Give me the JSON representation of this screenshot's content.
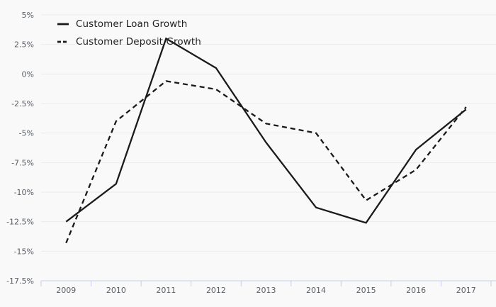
{
  "chart_data": {
    "type": "line",
    "title": "",
    "xlabel": "",
    "ylabel": "",
    "categories": [
      "2009",
      "2010",
      "2011",
      "2012",
      "2013",
      "2014",
      "2015",
      "2016",
      "2017"
    ],
    "series": [
      {
        "name": "Customer Loan Growth",
        "line_style": "solid",
        "color": "#1a1a1a",
        "values": [
          -12.5,
          -9.3,
          3.0,
          0.5,
          -5.8,
          -11.3,
          -12.6,
          -6.4,
          -3.0
        ]
      },
      {
        "name": "Customer Deposit Growth",
        "line_style": "dashed",
        "color": "#1a1a1a",
        "values": [
          -14.3,
          -4.0,
          -0.6,
          -1.3,
          -4.2,
          -5.0,
          -10.7,
          -8.1,
          -2.8
        ]
      }
    ],
    "ylim": [
      -17.5,
      5
    ],
    "y_tick_step": 2.5,
    "y_ticks": [
      5,
      2.5,
      0,
      -2.5,
      -5,
      -7.5,
      -10,
      -12.5,
      -15,
      -17.5
    ],
    "y_tick_labels": [
      "5%",
      "2.5%",
      "0%",
      "-2.5%",
      "-5%",
      "-7.5%",
      "-10%",
      "-12.5%",
      "-15%",
      "-17.5%"
    ],
    "unit": "%",
    "grid": "horizontal",
    "legend_position": "top-left"
  },
  "colors": {
    "background": "#f9f9fa",
    "gridline": "#ebebeb",
    "axis_line": "#c6cee8",
    "tick_text": "#5a5e64",
    "series_line": "#1a1a1a"
  }
}
